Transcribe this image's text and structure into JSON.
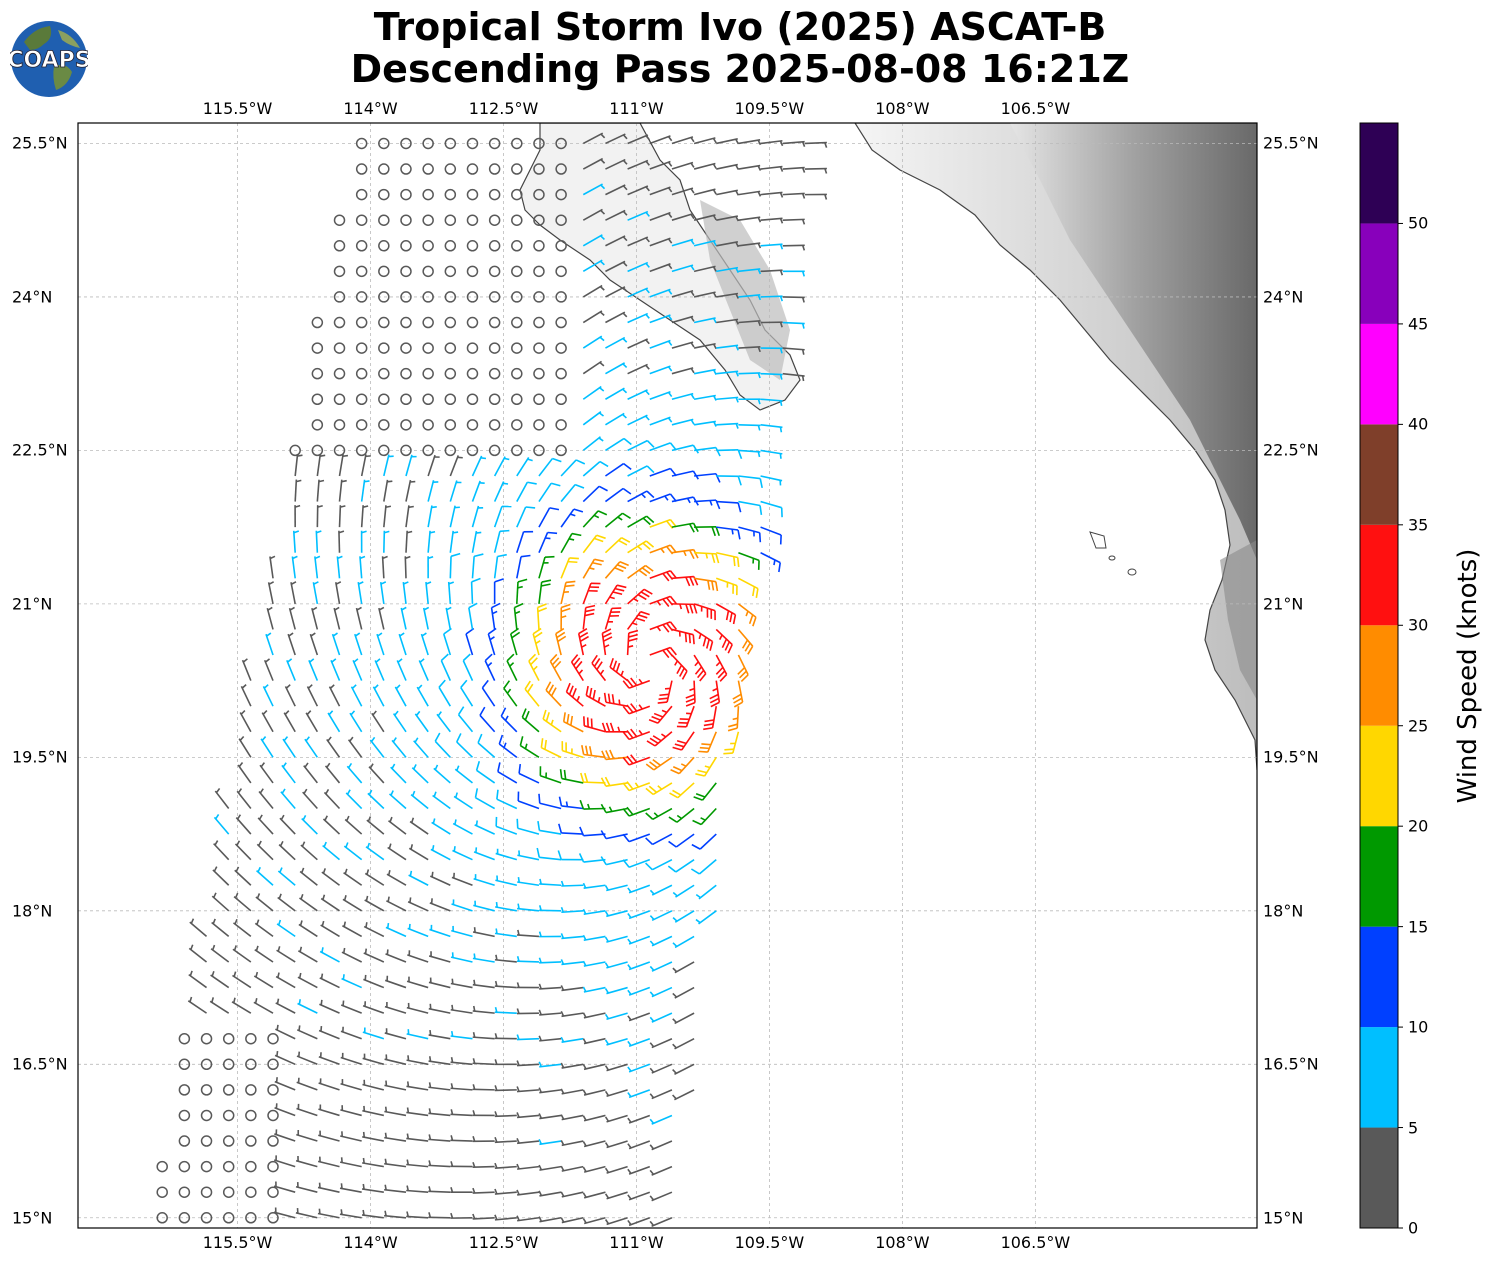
{
  "header": {
    "title_line1": "Tropical Storm Ivo (2025) ASCAT-B",
    "title_line2": "Descending Pass 2025-08-08 16:21Z",
    "logo_text": "COAPS"
  },
  "map": {
    "lon_range": [
      -117.3,
      -104.0
    ],
    "lat_range": [
      14.9,
      25.7
    ],
    "lon_ticks": [
      "115.5°W",
      "114°W",
      "112.5°W",
      "111°W",
      "109.5°W",
      "108°W",
      "106.5°W"
    ],
    "lat_ticks": [
      "25.5°N",
      "24°N",
      "22.5°N",
      "21°N",
      "19.5°N",
      "18°N",
      "16.5°N",
      "15°N"
    ],
    "gridlines": true,
    "background": "grayscale terrain over land, white ocean",
    "storm_center": {
      "lon": -110.85,
      "lat": 20.4
    }
  },
  "colorbar": {
    "label": "Wind Speed (knots)",
    "ticks": [
      "0",
      "5",
      "10",
      "15",
      "20",
      "25",
      "30",
      "35",
      "40",
      "45",
      "50"
    ],
    "bins": [
      {
        "range": [
          0,
          5
        ],
        "color": "#595959"
      },
      {
        "range": [
          5,
          10
        ],
        "color": "#00bfff"
      },
      {
        "range": [
          10,
          15
        ],
        "color": "#0040ff"
      },
      {
        "range": [
          15,
          20
        ],
        "color": "#009900"
      },
      {
        "range": [
          20,
          25
        ],
        "color": "#ffd700"
      },
      {
        "range": [
          25,
          30
        ],
        "color": "#ff8c00"
      },
      {
        "range": [
          30,
          35
        ],
        "color": "#ff1010"
      },
      {
        "range": [
          35,
          40
        ],
        "color": "#7f3f2a"
      },
      {
        "range": [
          40,
          45
        ],
        "color": "#ff00ff"
      },
      {
        "range": [
          45,
          50
        ],
        "color": "#8800bb"
      },
      {
        "range": [
          50,
          55
        ],
        "color": "#2e0055"
      }
    ]
  }
}
